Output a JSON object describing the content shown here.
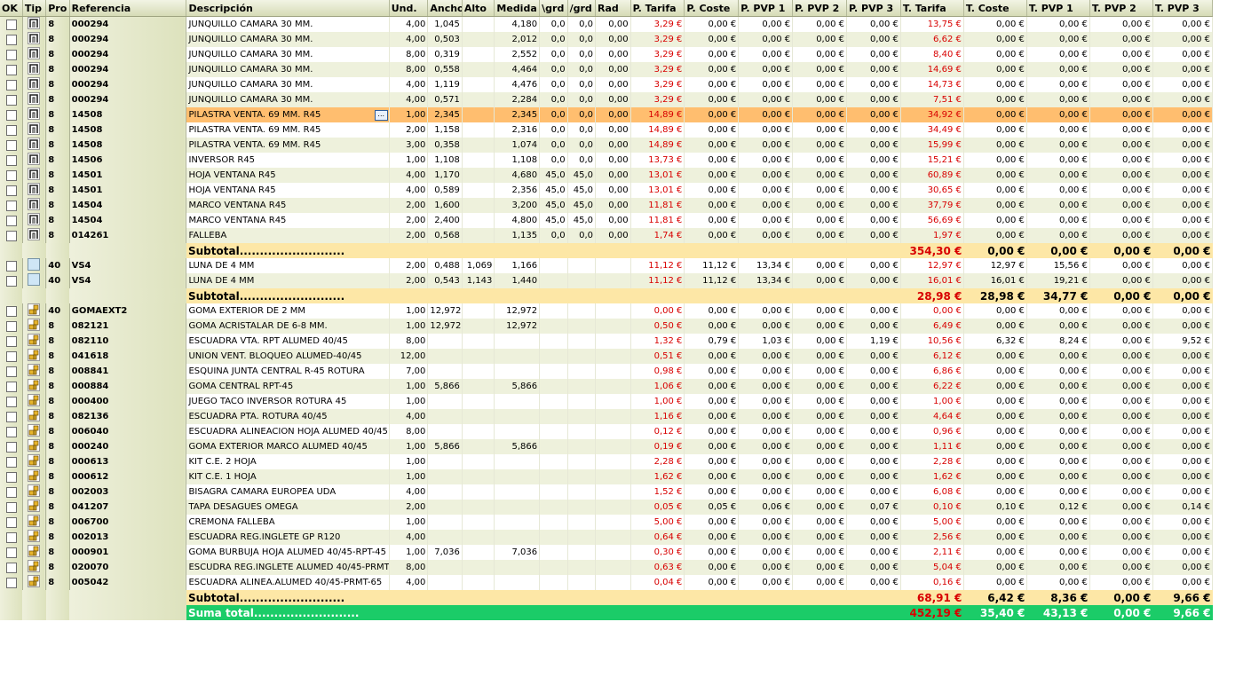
{
  "columns": [
    "OK",
    "Tip",
    "Pro",
    "Referencia",
    "Descripción",
    "Und.",
    "Ancho",
    "Alto",
    "Medida",
    "\\grd",
    "/grd",
    "Rad",
    "P. Tarifa",
    "P. Coste",
    "P. PVP 1",
    "P. PVP 2",
    "P. PVP 3",
    "T. Tarifa",
    "T. Coste",
    "T. PVP 1",
    "T. PVP 2",
    "T. PVP 3"
  ],
  "colors": {
    "subtotal_bg": "#fde7a6",
    "grand_bg": "#1bcc68",
    "selected_bg": "#ffbe6f",
    "price_red": "#d80000"
  },
  "rows": [
    {
      "kind": "item",
      "tip": "profile-icon",
      "pro": "8",
      "ref": "000294",
      "desc": "JUNQUILLO CAMARA 30 MM.",
      "und": "4,00",
      "ancho": "1,045",
      "alto": "",
      "medida": "4,180",
      "g1": "0,0",
      "g2": "0,0",
      "rad": "0,00",
      "pt": "3,29 €",
      "pc": "0,00 €",
      "pp1": "0,00 €",
      "pp2": "0,00 €",
      "pp3": "0,00 €",
      "tt": "13,75 €",
      "tc": "0,00 €",
      "tp1": "0,00 €",
      "tp2": "0,00 €",
      "tp3": "0,00 €"
    },
    {
      "kind": "item",
      "tip": "profile-icon",
      "pro": "8",
      "ref": "000294",
      "desc": "JUNQUILLO CAMARA 30 MM.",
      "und": "4,00",
      "ancho": "0,503",
      "alto": "",
      "medida": "2,012",
      "g1": "0,0",
      "g2": "0,0",
      "rad": "0,00",
      "pt": "3,29 €",
      "pc": "0,00 €",
      "pp1": "0,00 €",
      "pp2": "0,00 €",
      "pp3": "0,00 €",
      "tt": "6,62 €",
      "tc": "0,00 €",
      "tp1": "0,00 €",
      "tp2": "0,00 €",
      "tp3": "0,00 €"
    },
    {
      "kind": "item",
      "tip": "profile-icon",
      "pro": "8",
      "ref": "000294",
      "desc": "JUNQUILLO CAMARA 30 MM.",
      "und": "8,00",
      "ancho": "0,319",
      "alto": "",
      "medida": "2,552",
      "g1": "0,0",
      "g2": "0,0",
      "rad": "0,00",
      "pt": "3,29 €",
      "pc": "0,00 €",
      "pp1": "0,00 €",
      "pp2": "0,00 €",
      "pp3": "0,00 €",
      "tt": "8,40 €",
      "tc": "0,00 €",
      "tp1": "0,00 €",
      "tp2": "0,00 €",
      "tp3": "0,00 €"
    },
    {
      "kind": "item",
      "tip": "profile-icon",
      "pro": "8",
      "ref": "000294",
      "desc": "JUNQUILLO CAMARA 30 MM.",
      "und": "8,00",
      "ancho": "0,558",
      "alto": "",
      "medida": "4,464",
      "g1": "0,0",
      "g2": "0,0",
      "rad": "0,00",
      "pt": "3,29 €",
      "pc": "0,00 €",
      "pp1": "0,00 €",
      "pp2": "0,00 €",
      "pp3": "0,00 €",
      "tt": "14,69 €",
      "tc": "0,00 €",
      "tp1": "0,00 €",
      "tp2": "0,00 €",
      "tp3": "0,00 €"
    },
    {
      "kind": "item",
      "tip": "profile-icon",
      "pro": "8",
      "ref": "000294",
      "desc": "JUNQUILLO CAMARA 30 MM.",
      "und": "4,00",
      "ancho": "1,119",
      "alto": "",
      "medida": "4,476",
      "g1": "0,0",
      "g2": "0,0",
      "rad": "0,00",
      "pt": "3,29 €",
      "pc": "0,00 €",
      "pp1": "0,00 €",
      "pp2": "0,00 €",
      "pp3": "0,00 €",
      "tt": "14,73 €",
      "tc": "0,00 €",
      "tp1": "0,00 €",
      "tp2": "0,00 €",
      "tp3": "0,00 €"
    },
    {
      "kind": "item",
      "tip": "profile-icon",
      "pro": "8",
      "ref": "000294",
      "desc": "JUNQUILLO CAMARA 30 MM.",
      "und": "4,00",
      "ancho": "0,571",
      "alto": "",
      "medida": "2,284",
      "g1": "0,0",
      "g2": "0,0",
      "rad": "0,00",
      "pt": "3,29 €",
      "pc": "0,00 €",
      "pp1": "0,00 €",
      "pp2": "0,00 €",
      "pp3": "0,00 €",
      "tt": "7,51 €",
      "tc": "0,00 €",
      "tp1": "0,00 €",
      "tp2": "0,00 €",
      "tp3": "0,00 €"
    },
    {
      "kind": "item",
      "selected": true,
      "ellipsis": "...",
      "tip": "profile-icon",
      "pro": "8",
      "ref": "14508",
      "desc": "PILASTRA VENTA. 69 MM. R45",
      "und": "1,00",
      "ancho": "2,345",
      "alto": "",
      "medida": "2,345",
      "g1": "0,0",
      "g2": "0,0",
      "rad": "0,00",
      "pt": "14,89 €",
      "pc": "0,00 €",
      "pp1": "0,00 €",
      "pp2": "0,00 €",
      "pp3": "0,00 €",
      "tt": "34,92 €",
      "tc": "0,00 €",
      "tp1": "0,00 €",
      "tp2": "0,00 €",
      "tp3": "0,00 €"
    },
    {
      "kind": "item",
      "tip": "profile-icon",
      "pro": "8",
      "ref": "14508",
      "desc": "PILASTRA VENTA. 69 MM. R45",
      "und": "2,00",
      "ancho": "1,158",
      "alto": "",
      "medida": "2,316",
      "g1": "0,0",
      "g2": "0,0",
      "rad": "0,00",
      "pt": "14,89 €",
      "pc": "0,00 €",
      "pp1": "0,00 €",
      "pp2": "0,00 €",
      "pp3": "0,00 €",
      "tt": "34,49 €",
      "tc": "0,00 €",
      "tp1": "0,00 €",
      "tp2": "0,00 €",
      "tp3": "0,00 €"
    },
    {
      "kind": "item",
      "tip": "profile-icon",
      "pro": "8",
      "ref": "14508",
      "desc": "PILASTRA VENTA. 69 MM. R45",
      "und": "3,00",
      "ancho": "0,358",
      "alto": "",
      "medida": "1,074",
      "g1": "0,0",
      "g2": "0,0",
      "rad": "0,00",
      "pt": "14,89 €",
      "pc": "0,00 €",
      "pp1": "0,00 €",
      "pp2": "0,00 €",
      "pp3": "0,00 €",
      "tt": "15,99 €",
      "tc": "0,00 €",
      "tp1": "0,00 €",
      "tp2": "0,00 €",
      "tp3": "0,00 €"
    },
    {
      "kind": "item",
      "tip": "profile-icon",
      "pro": "8",
      "ref": "14506",
      "desc": "INVERSOR R45",
      "und": "1,00",
      "ancho": "1,108",
      "alto": "",
      "medida": "1,108",
      "g1": "0,0",
      "g2": "0,0",
      "rad": "0,00",
      "pt": "13,73 €",
      "pc": "0,00 €",
      "pp1": "0,00 €",
      "pp2": "0,00 €",
      "pp3": "0,00 €",
      "tt": "15,21 €",
      "tc": "0,00 €",
      "tp1": "0,00 €",
      "tp2": "0,00 €",
      "tp3": "0,00 €"
    },
    {
      "kind": "item",
      "tip": "profile-icon",
      "pro": "8",
      "ref": "14501",
      "desc": "HOJA VENTANA R45",
      "und": "4,00",
      "ancho": "1,170",
      "alto": "",
      "medida": "4,680",
      "g1": "45,0",
      "g2": "45,0",
      "rad": "0,00",
      "pt": "13,01 €",
      "pc": "0,00 €",
      "pp1": "0,00 €",
      "pp2": "0,00 €",
      "pp3": "0,00 €",
      "tt": "60,89 €",
      "tc": "0,00 €",
      "tp1": "0,00 €",
      "tp2": "0,00 €",
      "tp3": "0,00 €"
    },
    {
      "kind": "item",
      "tip": "profile-icon",
      "pro": "8",
      "ref": "14501",
      "desc": "HOJA VENTANA R45",
      "und": "4,00",
      "ancho": "0,589",
      "alto": "",
      "medida": "2,356",
      "g1": "45,0",
      "g2": "45,0",
      "rad": "0,00",
      "pt": "13,01 €",
      "pc": "0,00 €",
      "pp1": "0,00 €",
      "pp2": "0,00 €",
      "pp3": "0,00 €",
      "tt": "30,65 €",
      "tc": "0,00 €",
      "tp1": "0,00 €",
      "tp2": "0,00 €",
      "tp3": "0,00 €"
    },
    {
      "kind": "item",
      "tip": "profile-icon",
      "pro": "8",
      "ref": "14504",
      "desc": "MARCO VENTANA R45",
      "und": "2,00",
      "ancho": "1,600",
      "alto": "",
      "medida": "3,200",
      "g1": "45,0",
      "g2": "45,0",
      "rad": "0,00",
      "pt": "11,81 €",
      "pc": "0,00 €",
      "pp1": "0,00 €",
      "pp2": "0,00 €",
      "pp3": "0,00 €",
      "tt": "37,79 €",
      "tc": "0,00 €",
      "tp1": "0,00 €",
      "tp2": "0,00 €",
      "tp3": "0,00 €"
    },
    {
      "kind": "item",
      "tip": "profile-icon",
      "pro": "8",
      "ref": "14504",
      "desc": "MARCO VENTANA R45",
      "und": "2,00",
      "ancho": "2,400",
      "alto": "",
      "medida": "4,800",
      "g1": "45,0",
      "g2": "45,0",
      "rad": "0,00",
      "pt": "11,81 €",
      "pc": "0,00 €",
      "pp1": "0,00 €",
      "pp2": "0,00 €",
      "pp3": "0,00 €",
      "tt": "56,69 €",
      "tc": "0,00 €",
      "tp1": "0,00 €",
      "tp2": "0,00 €",
      "tp3": "0,00 €"
    },
    {
      "kind": "item",
      "tip": "profile-icon",
      "pro": "8",
      "ref": "014261",
      "desc": "FALLEBA",
      "und": "2,00",
      "ancho": "0,568",
      "alto": "",
      "medida": "1,135",
      "g1": "0,0",
      "g2": "0,0",
      "rad": "0,00",
      "pt": "1,74 €",
      "pc": "0,00 €",
      "pp1": "0,00 €",
      "pp2": "0,00 €",
      "pp3": "0,00 €",
      "tt": "1,97 €",
      "tc": "0,00 €",
      "tp1": "0,00 €",
      "tp2": "0,00 €",
      "tp3": "0,00 €"
    },
    {
      "kind": "subtotal",
      "label": "Subtotal..........................",
      "tt": "354,30 €",
      "tc": "0,00 €",
      "tp1": "0,00 €",
      "tp2": "0,00 €",
      "tp3": "0,00 €"
    },
    {
      "kind": "item",
      "tip": "glass-icon",
      "pro": "40",
      "ref": "VS4",
      "desc": "LUNA DE 4 MM",
      "und": "2,00",
      "ancho": "0,488",
      "alto": "1,069",
      "medida": "1,166",
      "g1": "",
      "g2": "",
      "rad": "",
      "pt": "11,12 €",
      "pc": "11,12 €",
      "pp1": "13,34 €",
      "pp2": "0,00 €",
      "pp3": "0,00 €",
      "tt": "12,97 €",
      "tc": "12,97 €",
      "tp1": "15,56 €",
      "tp2": "0,00 €",
      "tp3": "0,00 €"
    },
    {
      "kind": "item",
      "tip": "glass-icon",
      "pro": "40",
      "ref": "VS4",
      "desc": "LUNA DE 4 MM",
      "und": "2,00",
      "ancho": "0,543",
      "alto": "1,143",
      "medida": "1,440",
      "g1": "",
      "g2": "",
      "rad": "",
      "pt": "11,12 €",
      "pc": "11,12 €",
      "pp1": "13,34 €",
      "pp2": "0,00 €",
      "pp3": "0,00 €",
      "tt": "16,01 €",
      "tc": "16,01 €",
      "tp1": "19,21 €",
      "tp2": "0,00 €",
      "tp3": "0,00 €"
    },
    {
      "kind": "subtotal",
      "label": "Subtotal..........................",
      "tt": "28,98 €",
      "tc": "28,98 €",
      "tp1": "34,77 €",
      "tp2": "0,00 €",
      "tp3": "0,00 €"
    },
    {
      "kind": "item",
      "tip": "accessory-icon",
      "pro": "40",
      "ref": "GOMAEXT2",
      "desc": "GOMA EXTERIOR DE 2 MM",
      "und": "1,00",
      "ancho": "12,972",
      "alto": "",
      "medida": "12,972",
      "g1": "",
      "g2": "",
      "rad": "",
      "pt": "0,00 €",
      "pc": "0,00 €",
      "pp1": "0,00 €",
      "pp2": "0,00 €",
      "pp3": "0,00 €",
      "tt": "0,00 €",
      "tc": "0,00 €",
      "tp1": "0,00 €",
      "tp2": "0,00 €",
      "tp3": "0,00 €"
    },
    {
      "kind": "item",
      "tip": "accessory-icon",
      "pro": "8",
      "ref": "082121",
      "desc": "GOMA ACRISTALAR DE 6-8 MM.",
      "und": "1,00",
      "ancho": "12,972",
      "alto": "",
      "medida": "12,972",
      "g1": "",
      "g2": "",
      "rad": "",
      "pt": "0,50 €",
      "pc": "0,00 €",
      "pp1": "0,00 €",
      "pp2": "0,00 €",
      "pp3": "0,00 €",
      "tt": "6,49 €",
      "tc": "0,00 €",
      "tp1": "0,00 €",
      "tp2": "0,00 €",
      "tp3": "0,00 €"
    },
    {
      "kind": "item",
      "tip": "accessory-icon",
      "pro": "8",
      "ref": "082110",
      "desc": "ESCUADRA VTA. RPT ALUMED 40/45",
      "und": "8,00",
      "ancho": "",
      "alto": "",
      "medida": "",
      "g1": "",
      "g2": "",
      "rad": "",
      "pt": "1,32 €",
      "pc": "0,79 €",
      "pp1": "1,03 €",
      "pp2": "0,00 €",
      "pp3": "1,19 €",
      "tt": "10,56 €",
      "tc": "6,32 €",
      "tp1": "8,24 €",
      "tp2": "0,00 €",
      "tp3": "9,52 €"
    },
    {
      "kind": "item",
      "tip": "accessory-icon",
      "pro": "8",
      "ref": "041618",
      "desc": "UNION VENT. BLOQUEO ALUMED-40/45",
      "und": "12,00",
      "ancho": "",
      "alto": "",
      "medida": "",
      "g1": "",
      "g2": "",
      "rad": "",
      "pt": "0,51 €",
      "pc": "0,00 €",
      "pp1": "0,00 €",
      "pp2": "0,00 €",
      "pp3": "0,00 €",
      "tt": "6,12 €",
      "tc": "0,00 €",
      "tp1": "0,00 €",
      "tp2": "0,00 €",
      "tp3": "0,00 €"
    },
    {
      "kind": "item",
      "tip": "accessory-icon",
      "pro": "8",
      "ref": "008841",
      "desc": "ESQUINA JUNTA CENTRAL R-45 ROTURA",
      "und": "7,00",
      "ancho": "",
      "alto": "",
      "medida": "",
      "g1": "",
      "g2": "",
      "rad": "",
      "pt": "0,98 €",
      "pc": "0,00 €",
      "pp1": "0,00 €",
      "pp2": "0,00 €",
      "pp3": "0,00 €",
      "tt": "6,86 €",
      "tc": "0,00 €",
      "tp1": "0,00 €",
      "tp2": "0,00 €",
      "tp3": "0,00 €"
    },
    {
      "kind": "item",
      "tip": "accessory-icon",
      "pro": "8",
      "ref": "000884",
      "desc": "GOMA CENTRAL RPT-45",
      "und": "1,00",
      "ancho": "5,866",
      "alto": "",
      "medida": "5,866",
      "g1": "",
      "g2": "",
      "rad": "",
      "pt": "1,06 €",
      "pc": "0,00 €",
      "pp1": "0,00 €",
      "pp2": "0,00 €",
      "pp3": "0,00 €",
      "tt": "6,22 €",
      "tc": "0,00 €",
      "tp1": "0,00 €",
      "tp2": "0,00 €",
      "tp3": "0,00 €"
    },
    {
      "kind": "item",
      "tip": "accessory-icon",
      "pro": "8",
      "ref": "000400",
      "desc": "JUEGO TACO INVERSOR ROTURA 45",
      "und": "1,00",
      "ancho": "",
      "alto": "",
      "medida": "",
      "g1": "",
      "g2": "",
      "rad": "",
      "pt": "1,00 €",
      "pc": "0,00 €",
      "pp1": "0,00 €",
      "pp2": "0,00 €",
      "pp3": "0,00 €",
      "tt": "1,00 €",
      "tc": "0,00 €",
      "tp1": "0,00 €",
      "tp2": "0,00 €",
      "tp3": "0,00 €"
    },
    {
      "kind": "item",
      "tip": "accessory-icon",
      "pro": "8",
      "ref": "082136",
      "desc": "ESCUADRA PTA. ROTURA 40/45",
      "und": "4,00",
      "ancho": "",
      "alto": "",
      "medida": "",
      "g1": "",
      "g2": "",
      "rad": "",
      "pt": "1,16 €",
      "pc": "0,00 €",
      "pp1": "0,00 €",
      "pp2": "0,00 €",
      "pp3": "0,00 €",
      "tt": "4,64 €",
      "tc": "0,00 €",
      "tp1": "0,00 €",
      "tp2": "0,00 €",
      "tp3": "0,00 €"
    },
    {
      "kind": "item",
      "tip": "accessory-icon",
      "pro": "8",
      "ref": "006040",
      "desc": "ESCUADRA ALINEACION HOJA ALUMED 40/45",
      "und": "8,00",
      "ancho": "",
      "alto": "",
      "medida": "",
      "g1": "",
      "g2": "",
      "rad": "",
      "pt": "0,12 €",
      "pc": "0,00 €",
      "pp1": "0,00 €",
      "pp2": "0,00 €",
      "pp3": "0,00 €",
      "tt": "0,96 €",
      "tc": "0,00 €",
      "tp1": "0,00 €",
      "tp2": "0,00 €",
      "tp3": "0,00 €"
    },
    {
      "kind": "item",
      "tip": "accessory-icon",
      "pro": "8",
      "ref": "000240",
      "desc": "GOMA EXTERIOR MARCO ALUMED 40/45",
      "und": "1,00",
      "ancho": "5,866",
      "alto": "",
      "medida": "5,866",
      "g1": "",
      "g2": "",
      "rad": "",
      "pt": "0,19 €",
      "pc": "0,00 €",
      "pp1": "0,00 €",
      "pp2": "0,00 €",
      "pp3": "0,00 €",
      "tt": "1,11 €",
      "tc": "0,00 €",
      "tp1": "0,00 €",
      "tp2": "0,00 €",
      "tp3": "0,00 €"
    },
    {
      "kind": "item",
      "tip": "accessory-icon",
      "pro": "8",
      "ref": "000613",
      "desc": "KIT C.E. 2 HOJA",
      "und": "1,00",
      "ancho": "",
      "alto": "",
      "medida": "",
      "g1": "",
      "g2": "",
      "rad": "",
      "pt": "2,28 €",
      "pc": "0,00 €",
      "pp1": "0,00 €",
      "pp2": "0,00 €",
      "pp3": "0,00 €",
      "tt": "2,28 €",
      "tc": "0,00 €",
      "tp1": "0,00 €",
      "tp2": "0,00 €",
      "tp3": "0,00 €"
    },
    {
      "kind": "item",
      "tip": "accessory-icon",
      "pro": "8",
      "ref": "000612",
      "desc": "KIT C.E. 1 HOJA",
      "und": "1,00",
      "ancho": "",
      "alto": "",
      "medida": "",
      "g1": "",
      "g2": "",
      "rad": "",
      "pt": "1,62 €",
      "pc": "0,00 €",
      "pp1": "0,00 €",
      "pp2": "0,00 €",
      "pp3": "0,00 €",
      "tt": "1,62 €",
      "tc": "0,00 €",
      "tp1": "0,00 €",
      "tp2": "0,00 €",
      "tp3": "0,00 €"
    },
    {
      "kind": "item",
      "tip": "accessory-icon",
      "pro": "8",
      "ref": "002003",
      "desc": "BISAGRA CAMARA EUROPEA UDA",
      "und": "4,00",
      "ancho": "",
      "alto": "",
      "medida": "",
      "g1": "",
      "g2": "",
      "rad": "",
      "pt": "1,52 €",
      "pc": "0,00 €",
      "pp1": "0,00 €",
      "pp2": "0,00 €",
      "pp3": "0,00 €",
      "tt": "6,08 €",
      "tc": "0,00 €",
      "tp1": "0,00 €",
      "tp2": "0,00 €",
      "tp3": "0,00 €"
    },
    {
      "kind": "item",
      "tip": "accessory-icon",
      "pro": "8",
      "ref": "041207",
      "desc": "TAPA DESAGUES OMEGA",
      "und": "2,00",
      "ancho": "",
      "alto": "",
      "medida": "",
      "g1": "",
      "g2": "",
      "rad": "",
      "pt": "0,05 €",
      "pc": "0,05 €",
      "pp1": "0,06 €",
      "pp2": "0,00 €",
      "pp3": "0,07 €",
      "tt": "0,10 €",
      "tc": "0,10 €",
      "tp1": "0,12 €",
      "tp2": "0,00 €",
      "tp3": "0,14 €"
    },
    {
      "kind": "item",
      "tip": "accessory-icon",
      "pro": "8",
      "ref": "006700",
      "desc": "CREMONA FALLEBA",
      "und": "1,00",
      "ancho": "",
      "alto": "",
      "medida": "",
      "g1": "",
      "g2": "",
      "rad": "",
      "pt": "5,00 €",
      "pc": "0,00 €",
      "pp1": "0,00 €",
      "pp2": "0,00 €",
      "pp3": "0,00 €",
      "tt": "5,00 €",
      "tc": "0,00 €",
      "tp1": "0,00 €",
      "tp2": "0,00 €",
      "tp3": "0,00 €"
    },
    {
      "kind": "item",
      "tip": "accessory-icon",
      "pro": "8",
      "ref": "002013",
      "desc": "ESCUADRA REG.INGLETE GP R120",
      "und": "4,00",
      "ancho": "",
      "alto": "",
      "medida": "",
      "g1": "",
      "g2": "",
      "rad": "",
      "pt": "0,64 €",
      "pc": "0,00 €",
      "pp1": "0,00 €",
      "pp2": "0,00 €",
      "pp3": "0,00 €",
      "tt": "2,56 €",
      "tc": "0,00 €",
      "tp1": "0,00 €",
      "tp2": "0,00 €",
      "tp3": "0,00 €"
    },
    {
      "kind": "item",
      "tip": "accessory-icon",
      "pro": "8",
      "ref": "000901",
      "desc": "GOMA BURBUJA HOJA ALUMED 40/45-RPT-45",
      "und": "1,00",
      "ancho": "7,036",
      "alto": "",
      "medida": "7,036",
      "g1": "",
      "g2": "",
      "rad": "",
      "pt": "0,30 €",
      "pc": "0,00 €",
      "pp1": "0,00 €",
      "pp2": "0,00 €",
      "pp3": "0,00 €",
      "tt": "2,11 €",
      "tc": "0,00 €",
      "tp1": "0,00 €",
      "tp2": "0,00 €",
      "tp3": "0,00 €"
    },
    {
      "kind": "item",
      "tip": "accessory-icon",
      "pro": "8",
      "ref": "020070",
      "desc": "ESCUDRA REG.INGLETE ALUMED 40/45-PRMT-",
      "und": "8,00",
      "ancho": "",
      "alto": "",
      "medida": "",
      "g1": "",
      "g2": "",
      "rad": "",
      "pt": "0,63 €",
      "pc": "0,00 €",
      "pp1": "0,00 €",
      "pp2": "0,00 €",
      "pp3": "0,00 €",
      "tt": "5,04 €",
      "tc": "0,00 €",
      "tp1": "0,00 €",
      "tp2": "0,00 €",
      "tp3": "0,00 €"
    },
    {
      "kind": "item",
      "tip": "accessory-icon",
      "pro": "8",
      "ref": "005042",
      "desc": "ESCUADRA ALINEA.ALUMED 40/45-PRMT-65",
      "und": "4,00",
      "ancho": "",
      "alto": "",
      "medida": "",
      "g1": "",
      "g2": "",
      "rad": "",
      "pt": "0,04 €",
      "pc": "0,00 €",
      "pp1": "0,00 €",
      "pp2": "0,00 €",
      "pp3": "0,00 €",
      "tt": "0,16 €",
      "tc": "0,00 €",
      "tp1": "0,00 €",
      "tp2": "0,00 €",
      "tp3": "0,00 €"
    },
    {
      "kind": "subtotal",
      "label": "Subtotal..........................",
      "tt": "68,91 €",
      "tc": "6,42 €",
      "tp1": "8,36 €",
      "tp2": "0,00 €",
      "tp3": "9,66 €"
    },
    {
      "kind": "grand",
      "label": "Suma total..........................",
      "tt": "452,19 €",
      "tc": "35,40 €",
      "tp1": "43,13 €",
      "tp2": "0,00 €",
      "tp3": "9,66 €"
    }
  ]
}
